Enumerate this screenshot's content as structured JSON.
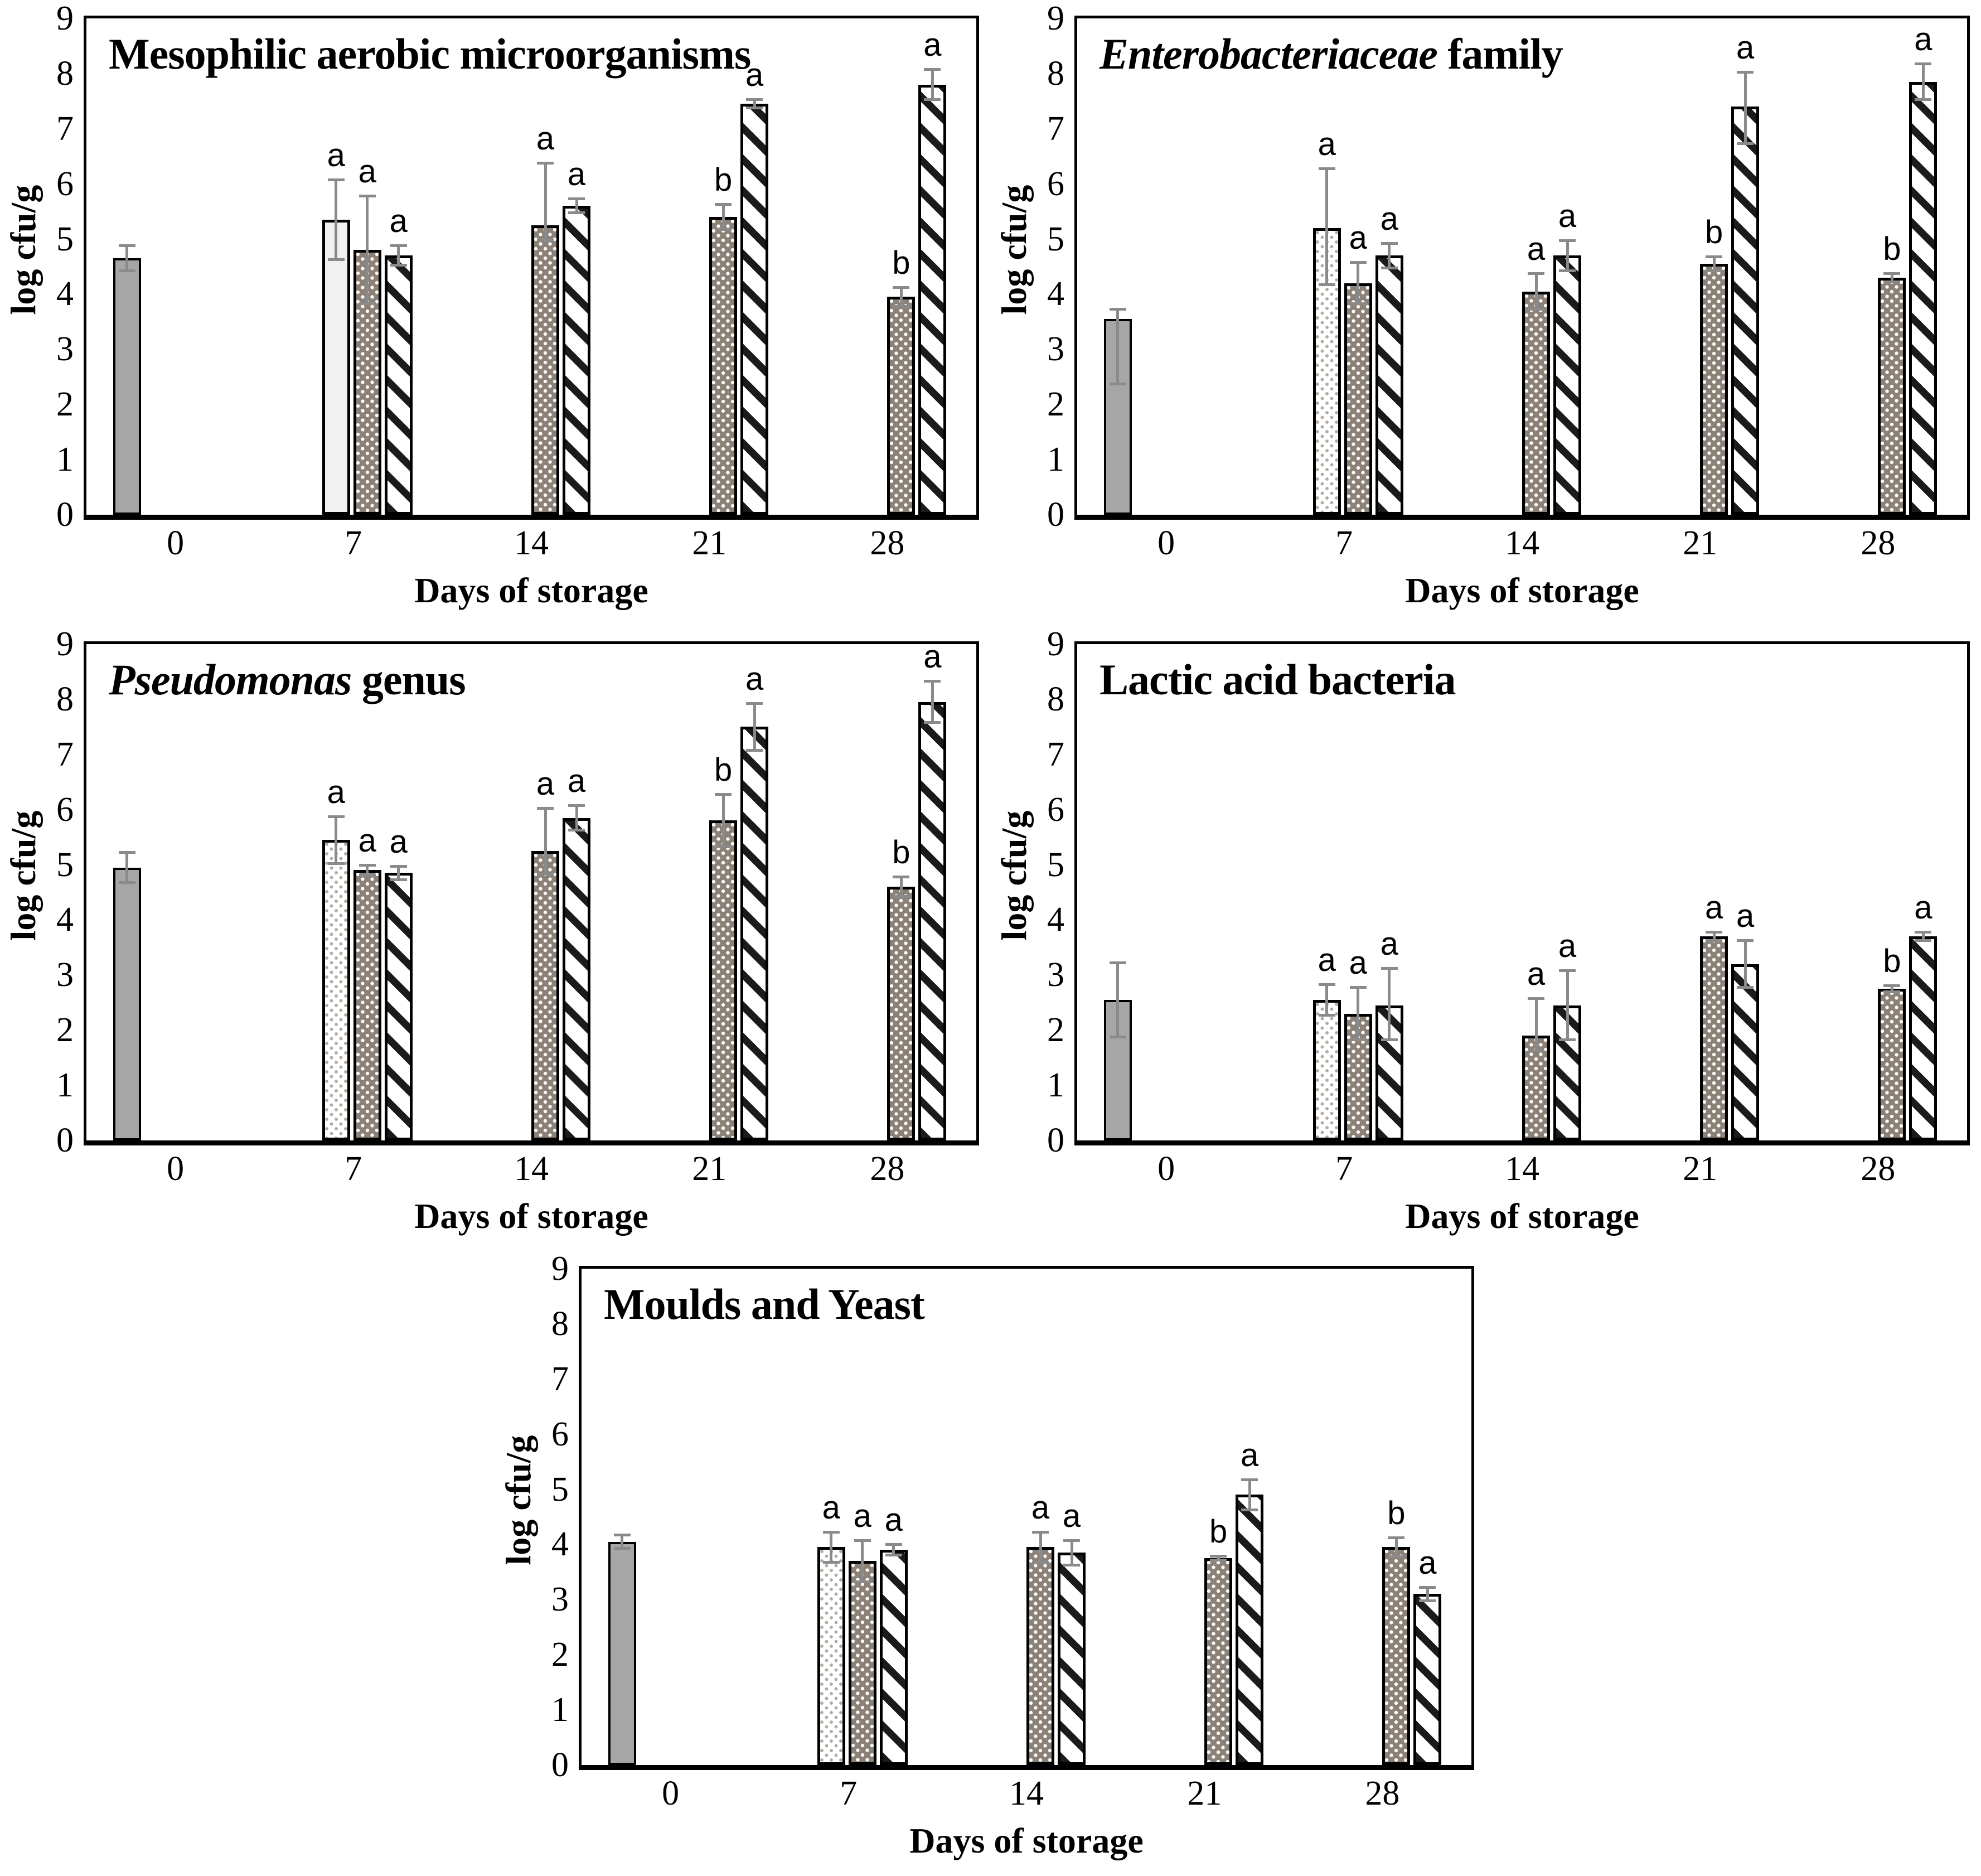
{
  "figure": {
    "ylabel": "log cfu/g",
    "xlabel": "Days of storage",
    "categories": [
      "0",
      "7",
      "14",
      "21",
      "28"
    ],
    "yticks": [
      "0",
      "1",
      "2",
      "3",
      "4",
      "5",
      "6",
      "7",
      "8",
      "9"
    ],
    "ylim": [
      0,
      9
    ],
    "colors": {
      "axis": "#000000",
      "error_bar": "#8a8a8a",
      "solid_bar_fill": "#a6a6a6",
      "plain_light_fill": "#f1f1f1",
      "light_dot": "#b3aaa2",
      "dark_dot_background": "#8b8177",
      "stripe": "#1b1b1b"
    }
  },
  "chart_data": [
    {
      "type": "bar",
      "title_parts": [
        {
          "text": "Mesophilic aerobic microorganisms",
          "italic": false
        }
      ],
      "ylabel": "log cfu/g",
      "xlabel": "Days of storage",
      "ylim": [
        0,
        9
      ],
      "categories": [
        "0",
        "7",
        "14",
        "21",
        "28"
      ],
      "series_patterns": {
        "1": "solid",
        "2": "plain",
        "3": "ddots",
        "4": "stripes"
      },
      "bars": [
        {
          "category": "0",
          "series": 1,
          "value": 4.65,
          "err_up": 0.25,
          "err_down": 0.25,
          "letter": ""
        },
        {
          "category": "7",
          "series": 2,
          "value": 5.35,
          "err_up": 0.75,
          "err_down": 0.75,
          "letter": "a"
        },
        {
          "category": "7",
          "series": 3,
          "value": 4.8,
          "err_up": 1.0,
          "err_down": 1.0,
          "letter": "a"
        },
        {
          "category": "7",
          "series": 4,
          "value": 4.7,
          "err_up": 0.2,
          "err_down": 0.2,
          "letter": "a"
        },
        {
          "category": "14",
          "series": 3,
          "value": 5.25,
          "err_up": 1.15,
          "err_down": 0.3,
          "letter": "a"
        },
        {
          "category": "14",
          "series": 4,
          "value": 5.6,
          "err_up": 0.15,
          "err_down": 0.15,
          "letter": "a"
        },
        {
          "category": "21",
          "series": 3,
          "value": 5.4,
          "err_up": 0.25,
          "err_down": 0.25,
          "letter": "b"
        },
        {
          "category": "21",
          "series": 4,
          "value": 7.45,
          "err_up": 0.1,
          "err_down": 0.1,
          "letter": "a"
        },
        {
          "category": "28",
          "series": 3,
          "value": 3.95,
          "err_up": 0.2,
          "err_down": 0.2,
          "letter": "b"
        },
        {
          "category": "28",
          "series": 4,
          "value": 7.8,
          "err_up": 0.3,
          "err_down": 0.3,
          "letter": "a"
        }
      ]
    },
    {
      "type": "bar",
      "title_parts": [
        {
          "text": "Enterobacteriaceae",
          "italic": true
        },
        {
          "text": " family",
          "italic": false
        }
      ],
      "ylabel": "log cfu/g",
      "xlabel": "Days of storage",
      "ylim": [
        0,
        9
      ],
      "categories": [
        "0",
        "7",
        "14",
        "21",
        "28"
      ],
      "series_patterns": {
        "1": "solid",
        "2": "ldots",
        "3": "ddots",
        "4": "stripes"
      },
      "bars": [
        {
          "category": "0",
          "series": 1,
          "value": 3.55,
          "err_up": 0.2,
          "err_down": 1.2,
          "letter": ""
        },
        {
          "category": "7",
          "series": 2,
          "value": 5.2,
          "err_up": 1.1,
          "err_down": 1.05,
          "letter": "a"
        },
        {
          "category": "7",
          "series": 3,
          "value": 4.2,
          "err_up": 0.4,
          "err_down": 0.4,
          "letter": "a"
        },
        {
          "category": "7",
          "series": 4,
          "value": 4.7,
          "err_up": 0.25,
          "err_down": 0.25,
          "letter": "a"
        },
        {
          "category": "14",
          "series": 3,
          "value": 4.05,
          "err_up": 0.35,
          "err_down": 0.35,
          "letter": "a"
        },
        {
          "category": "14",
          "series": 4,
          "value": 4.7,
          "err_up": 0.3,
          "err_down": 0.3,
          "letter": "a"
        },
        {
          "category": "21",
          "series": 3,
          "value": 4.55,
          "err_up": 0.15,
          "err_down": 0.15,
          "letter": "b"
        },
        {
          "category": "21",
          "series": 4,
          "value": 7.4,
          "err_up": 0.65,
          "err_down": 0.7,
          "letter": "a"
        },
        {
          "category": "28",
          "series": 3,
          "value": 4.3,
          "err_up": 0.1,
          "err_down": 0.1,
          "letter": "b"
        },
        {
          "category": "28",
          "series": 4,
          "value": 7.85,
          "err_up": 0.35,
          "err_down": 0.35,
          "letter": "a"
        }
      ]
    },
    {
      "type": "bar",
      "title_parts": [
        {
          "text": "Pseudomonas",
          "italic": true
        },
        {
          "text": " genus",
          "italic": false
        }
      ],
      "ylabel": "log cfu/g",
      "xlabel": "Days of storage",
      "ylim": [
        0,
        9
      ],
      "categories": [
        "0",
        "7",
        "14",
        "21",
        "28"
      ],
      "series_patterns": {
        "1": "solid",
        "2": "ldots",
        "3": "ddots",
        "4": "stripes"
      },
      "bars": [
        {
          "category": "0",
          "series": 1,
          "value": 4.95,
          "err_up": 0.3,
          "err_down": 0.3,
          "letter": ""
        },
        {
          "category": "7",
          "series": 2,
          "value": 5.45,
          "err_up": 0.45,
          "err_down": 0.45,
          "letter": "a"
        },
        {
          "category": "7",
          "series": 3,
          "value": 4.9,
          "err_up": 0.12,
          "err_down": 0.12,
          "letter": "a"
        },
        {
          "category": "7",
          "series": 4,
          "value": 4.85,
          "err_up": 0.15,
          "err_down": 0.15,
          "letter": "a"
        },
        {
          "category": "14",
          "series": 3,
          "value": 5.25,
          "err_up": 0.8,
          "err_down": 0.45,
          "letter": "a"
        },
        {
          "category": "14",
          "series": 4,
          "value": 5.85,
          "err_up": 0.25,
          "err_down": 0.25,
          "letter": "a"
        },
        {
          "category": "21",
          "series": 3,
          "value": 5.8,
          "err_up": 0.5,
          "err_down": 0.5,
          "letter": "b"
        },
        {
          "category": "21",
          "series": 4,
          "value": 7.5,
          "err_up": 0.45,
          "err_down": 0.45,
          "letter": "a"
        },
        {
          "category": "28",
          "series": 3,
          "value": 4.6,
          "err_up": 0.2,
          "err_down": 0.2,
          "letter": "b"
        },
        {
          "category": "28",
          "series": 4,
          "value": 7.95,
          "err_up": 0.4,
          "err_down": 0.4,
          "letter": "a"
        }
      ]
    },
    {
      "type": "bar",
      "title_parts": [
        {
          "text": "Lactic acid bacteria",
          "italic": false
        }
      ],
      "ylabel": "log cfu/g",
      "xlabel": "Days of storage",
      "ylim": [
        0,
        9
      ],
      "categories": [
        "0",
        "7",
        "14",
        "21",
        "28"
      ],
      "series_patterns": {
        "1": "solid",
        "2": "ldots",
        "3": "ddots",
        "4": "stripes"
      },
      "bars": [
        {
          "category": "0",
          "series": 1,
          "value": 2.55,
          "err_up": 0.7,
          "err_down": 0.7,
          "letter": ""
        },
        {
          "category": "7",
          "series": 2,
          "value": 2.55,
          "err_up": 0.3,
          "err_down": 0.3,
          "letter": "a"
        },
        {
          "category": "7",
          "series": 3,
          "value": 2.3,
          "err_up": 0.5,
          "err_down": 0.5,
          "letter": "a"
        },
        {
          "category": "7",
          "series": 4,
          "value": 2.45,
          "err_up": 0.7,
          "err_down": 0.65,
          "letter": "a"
        },
        {
          "category": "14",
          "series": 3,
          "value": 1.9,
          "err_up": 0.7,
          "err_down": 0.3,
          "letter": "a"
        },
        {
          "category": "14",
          "series": 4,
          "value": 2.45,
          "err_up": 0.65,
          "err_down": 0.65,
          "letter": "a"
        },
        {
          "category": "21",
          "series": 3,
          "value": 3.7,
          "err_up": 0.1,
          "err_down": 0.1,
          "letter": "a"
        },
        {
          "category": "21",
          "series": 4,
          "value": 3.2,
          "err_up": 0.45,
          "err_down": 0.45,
          "letter": "a"
        },
        {
          "category": "28",
          "series": 3,
          "value": 2.75,
          "err_up": 0.08,
          "err_down": 0.08,
          "letter": "b"
        },
        {
          "category": "28",
          "series": 4,
          "value": 3.7,
          "err_up": 0.1,
          "err_down": 0.1,
          "letter": "a"
        }
      ]
    },
    {
      "type": "bar",
      "title_parts": [
        {
          "text": "Moulds and Yeast",
          "italic": false
        }
      ],
      "ylabel": "log cfu/g",
      "xlabel": "Days of storage",
      "ylim": [
        0,
        9
      ],
      "categories": [
        "0",
        "7",
        "14",
        "21",
        "28"
      ],
      "series_patterns": {
        "1": "solid",
        "2": "ldots",
        "3": "ddots",
        "4": "stripes"
      },
      "bars": [
        {
          "category": "0",
          "series": 1,
          "value": 4.05,
          "err_up": 0.15,
          "err_down": 0.15,
          "letter": ""
        },
        {
          "category": "7",
          "series": 2,
          "value": 3.95,
          "err_up": 0.3,
          "err_down": 0.3,
          "letter": "a"
        },
        {
          "category": "7",
          "series": 3,
          "value": 3.7,
          "err_up": 0.4,
          "err_down": 0.4,
          "letter": "a"
        },
        {
          "category": "7",
          "series": 4,
          "value": 3.9,
          "err_up": 0.12,
          "err_down": 0.12,
          "letter": "a"
        },
        {
          "category": "14",
          "series": 3,
          "value": 3.95,
          "err_up": 0.3,
          "err_down": 0.3,
          "letter": "a"
        },
        {
          "category": "14",
          "series": 4,
          "value": 3.85,
          "err_up": 0.25,
          "err_down": 0.25,
          "letter": "a"
        },
        {
          "category": "21",
          "series": 3,
          "value": 3.75,
          "err_up": 0.06,
          "err_down": 0.06,
          "letter": "b"
        },
        {
          "category": "21",
          "series": 4,
          "value": 4.9,
          "err_up": 0.3,
          "err_down": 0.3,
          "letter": "a"
        },
        {
          "category": "28",
          "series": 3,
          "value": 3.95,
          "err_up": 0.2,
          "err_down": 0.2,
          "letter": "b"
        },
        {
          "category": "28",
          "series": 4,
          "value": 3.1,
          "err_up": 0.15,
          "err_down": 0.15,
          "letter": "a"
        }
      ]
    }
  ]
}
